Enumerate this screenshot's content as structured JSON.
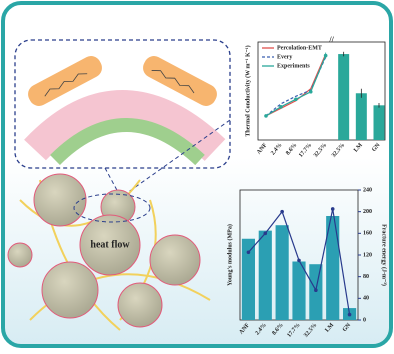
{
  "chart_data": [
    {
      "type": "combo",
      "ylabel": "Thermal Conductivity (W m⁻¹ K⁻¹)",
      "categories": [
        "ANF",
        "2.4%",
        "8.6%",
        "17.7%",
        "32.5%",
        "32.5%",
        "LM",
        "GN"
      ],
      "ylim": [
        0,
        6.5
      ],
      "series": [
        {
          "name": "Percolation-EMT",
          "kind": "line",
          "color": "#e0524f",
          "values": [
            1.6,
            2.1,
            2.6,
            3.4,
            5.7,
            null,
            null,
            null
          ]
        },
        {
          "name": "Every",
          "kind": "dashed",
          "color": "#3b5fb0",
          "values": [
            1.6,
            2.4,
            2.9,
            3.3,
            5.5,
            null,
            null,
            null
          ]
        },
        {
          "name": "Experiments",
          "kind": "line",
          "color": "#2aa89a",
          "values": [
            1.6,
            2.2,
            2.7,
            3.2,
            5.6,
            null,
            null,
            null
          ],
          "errors": [
            0.1,
            0.1,
            0.1,
            0.1,
            0.2,
            null,
            null,
            null
          ]
        },
        {
          "kind": "bar",
          "color": "#2aa89a",
          "values": [
            null,
            null,
            null,
            null,
            null,
            5.7,
            3.1,
            2.3
          ],
          "errors": [
            null,
            null,
            null,
            null,
            null,
            0.15,
            0.3,
            0.15
          ]
        }
      ]
    },
    {
      "type": "combo",
      "ylabel": "Young's modulus (MPa)",
      "y2label": "Fracture energy (J·m⁻³)",
      "categories": [
        "ANF",
        "2.4%",
        "8.6%",
        "17.7%",
        "32.5%",
        "LM",
        "GN"
      ],
      "ylim": [
        0,
        2400
      ],
      "y2lim": [
        0,
        240
      ],
      "y2ticks": [
        0,
        40,
        80,
        120,
        160,
        200,
        240
      ],
      "series": [
        {
          "kind": "bar",
          "color": "#2b9fb3",
          "values": [
            1500,
            1650,
            1750,
            1080,
            1030,
            1920,
            220
          ]
        },
        {
          "kind": "line",
          "axis": "y2",
          "color": "#283a8c",
          "values": [
            125,
            160,
            200,
            110,
            55,
            205,
            10
          ]
        }
      ]
    }
  ],
  "diagram": {
    "label": "heat flow"
  }
}
